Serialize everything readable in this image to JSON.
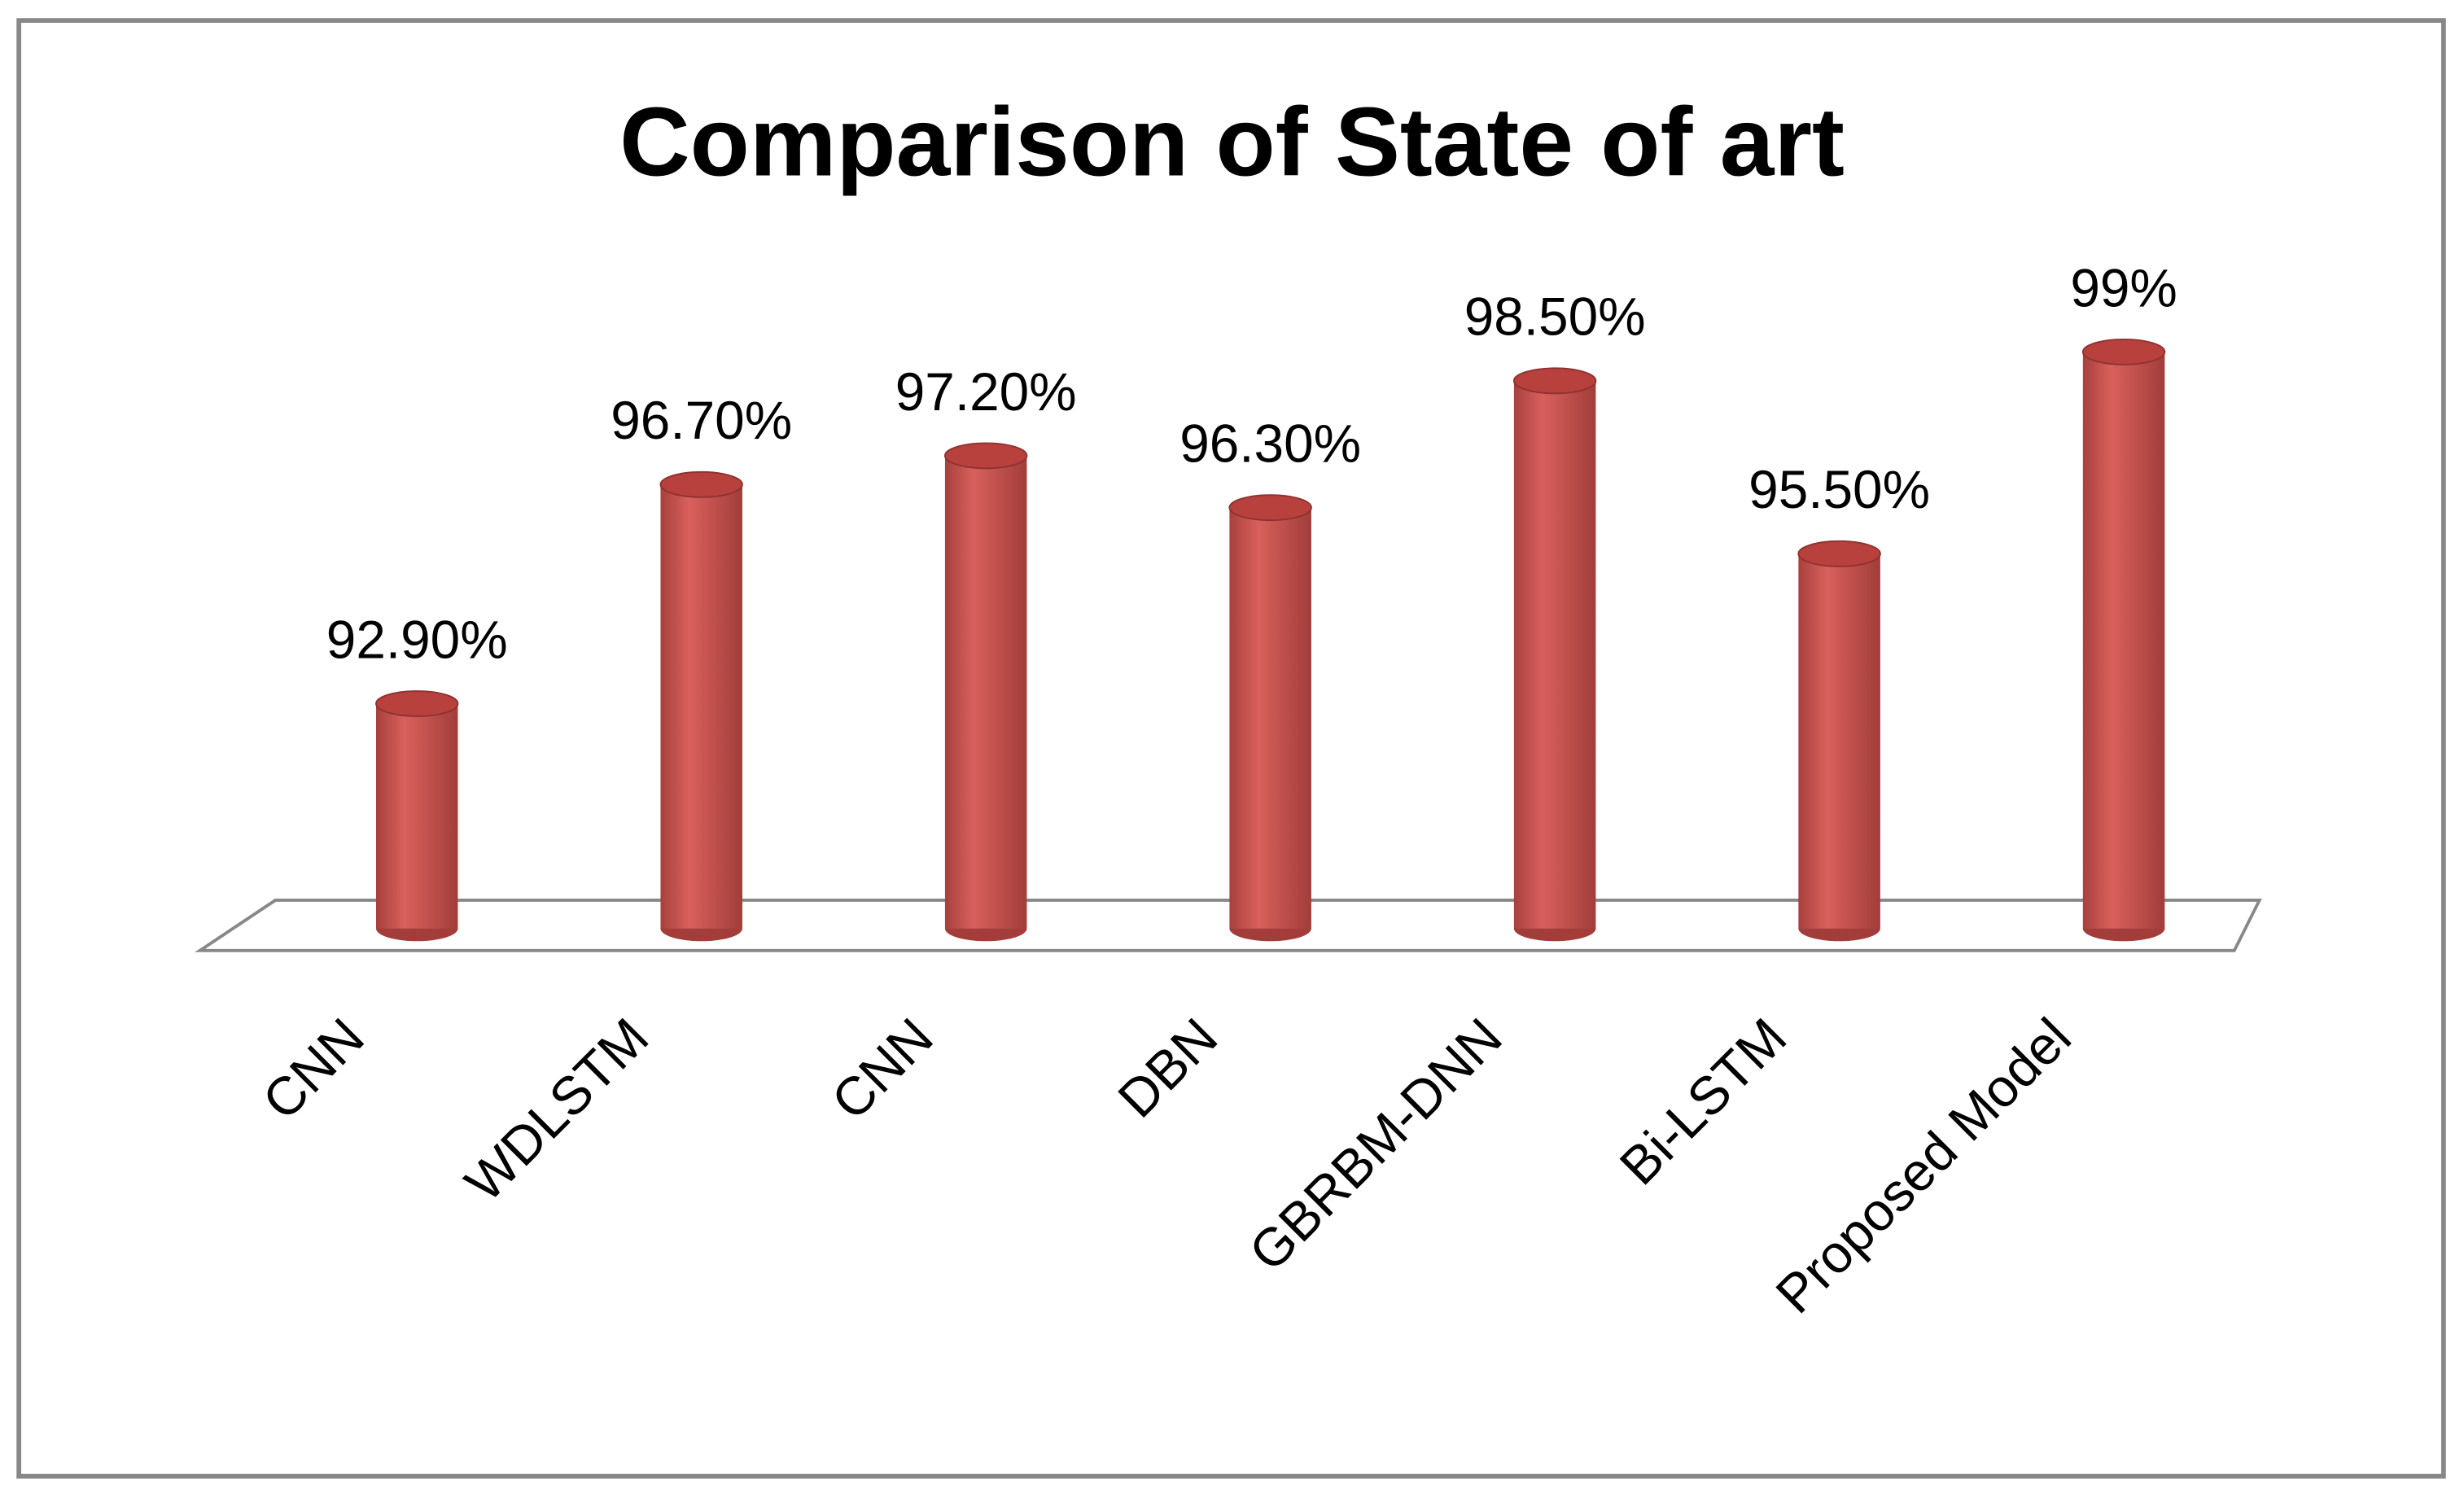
{
  "chart_data": {
    "type": "bar",
    "title": "Comparison of State of art",
    "categories": [
      "CNN",
      "WDLSTM",
      "CNN",
      "DBN",
      "GBRBM-DNN",
      "Bi-LSTM",
      "Proposed Model"
    ],
    "values": [
      92.9,
      96.7,
      97.2,
      96.3,
      98.5,
      95.5,
      99
    ],
    "value_labels": [
      "92.90%",
      "96.70%",
      "97.20%",
      "96.30%",
      "98.50%",
      "95.50%",
      "99%"
    ],
    "color": "#c0504d",
    "ylim": [
      89,
      100
    ]
  }
}
